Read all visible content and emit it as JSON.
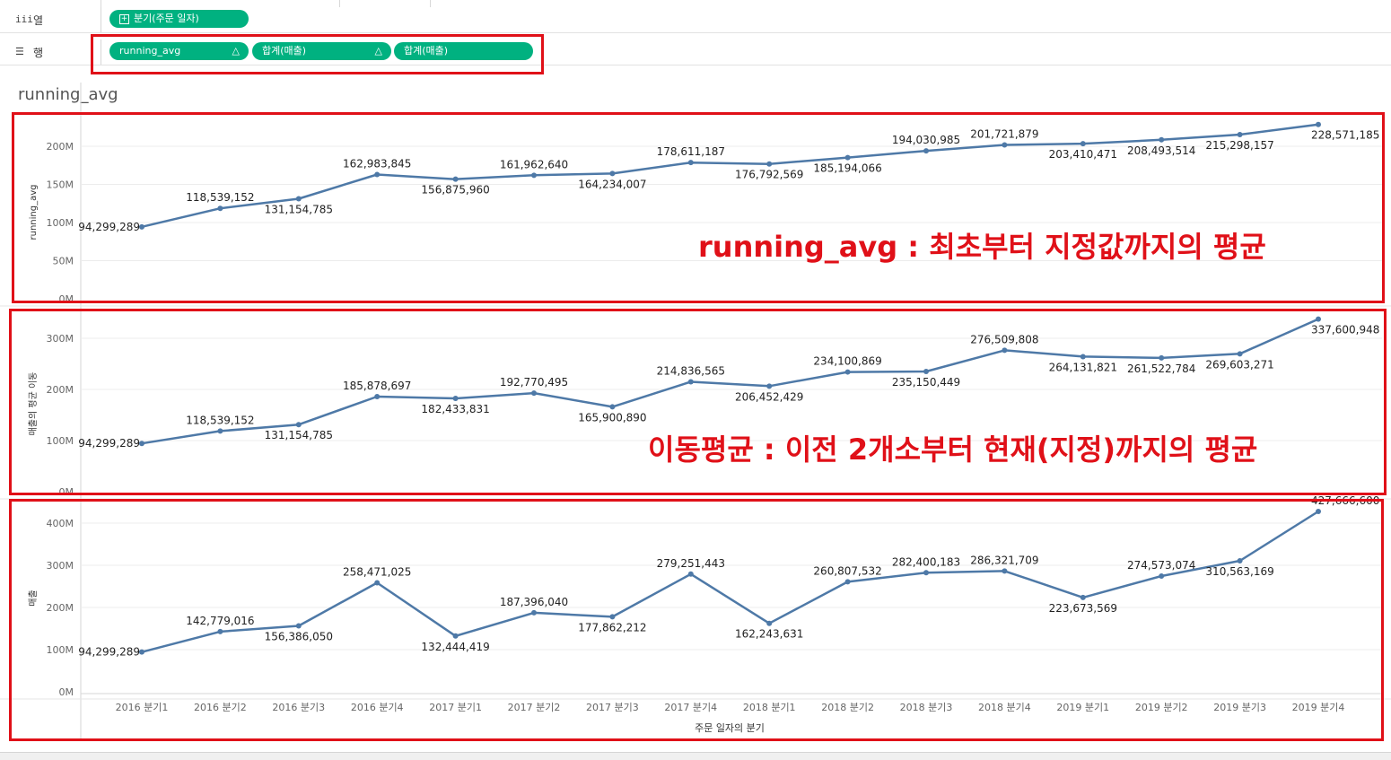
{
  "shelves": {
    "columns": {
      "label": "열",
      "icon": "column-bars-icon",
      "pills": [
        {
          "label": "분기(주문 일자)",
          "delta": false,
          "expand": true
        }
      ]
    },
    "rows": {
      "label": "행",
      "icon": "list-lines-icon",
      "pills": [
        {
          "label": "running_avg",
          "delta": true
        },
        {
          "label": "합계(매출)",
          "delta": true
        },
        {
          "label": "합계(매출)",
          "delta": false
        }
      ]
    }
  },
  "sheet": {
    "title": "running_avg"
  },
  "annotations": {
    "panel1": "running_avg : 최초부터 지정값까지의 평균",
    "panel2": "이동평균 : 이전 2개소부터 현재(지정)까지의 평균"
  },
  "colors": {
    "line": "#4e79a7",
    "pill": "#00b180",
    "highlight": "#e01018",
    "grid": "#ececec",
    "tick": "#666666"
  },
  "chart_data": [
    {
      "type": "line",
      "ylabel": "running_avg",
      "xlabel": "주문 일자의 분기",
      "categories": [
        "2016 분기1",
        "2016 분기2",
        "2016 분기3",
        "2016 분기4",
        "2017 분기1",
        "2017 분기2",
        "2017 분기3",
        "2017 분기4",
        "2018 분기1",
        "2018 분기2",
        "2018 분기3",
        "2018 분기4",
        "2019 분기1",
        "2019 분기2",
        "2019 분기3",
        "2019 분기4"
      ],
      "values": [
        94299289,
        118539152,
        131154785,
        162983845,
        156875960,
        161962640,
        164234007,
        178611187,
        176792569,
        185194066,
        194030985,
        201721879,
        203410471,
        208493514,
        215298157,
        228571185
      ],
      "data_labels": [
        "94,299,289",
        "118,539,152",
        "131,154,785",
        "162,983,845",
        "156,875,960",
        "161,962,640",
        "164,234,007",
        "178,611,187",
        "176,792,569",
        "185,194,066",
        "194,030,985",
        "201,721,879",
        "203,410,471",
        "208,493,514",
        "215,298,157",
        "228,571,185"
      ],
      "yticks": [
        0,
        50000000,
        100000000,
        150000000,
        200000000
      ],
      "ytick_labels": [
        "0M",
        "50M",
        "100M",
        "150M",
        "200M"
      ],
      "ylim": [
        0,
        235000000
      ]
    },
    {
      "type": "line",
      "ylabel": "매출의 평균 이동",
      "xlabel": "주문 일자의 분기",
      "categories": [
        "2016 분기1",
        "2016 분기2",
        "2016 분기3",
        "2016 분기4",
        "2017 분기1",
        "2017 분기2",
        "2017 분기3",
        "2017 분기4",
        "2018 분기1",
        "2018 분기2",
        "2018 분기3",
        "2018 분기4",
        "2019 분기1",
        "2019 분기2",
        "2019 분기3",
        "2019 분기4"
      ],
      "values": [
        94299289,
        118539152,
        131154785,
        185878697,
        182433831,
        192770495,
        165900890,
        214836565,
        206452429,
        234100869,
        235150449,
        276509808,
        264131821,
        261522784,
        269603271,
        337600948
      ],
      "data_labels": [
        "94,299,289",
        "118,539,152",
        "131,154,785",
        "185,878,697",
        "182,433,831",
        "192,770,495",
        "165,900,890",
        "214,836,565",
        "206,452,429",
        "234,100,869",
        "235,150,449",
        "276,509,808",
        "264,131,821",
        "261,522,784",
        "269,603,271",
        "337,600,948"
      ],
      "yticks": [
        0,
        100000000,
        200000000,
        300000000
      ],
      "ytick_labels": [
        "0M",
        "100M",
        "200M",
        "300M"
      ],
      "ylim": [
        0,
        345000000
      ]
    },
    {
      "type": "line",
      "ylabel": "매출",
      "xlabel": "주문 일자의 분기",
      "categories": [
        "2016 분기1",
        "2016 분기2",
        "2016 분기3",
        "2016 분기4",
        "2017 분기1",
        "2017 분기2",
        "2017 분기3",
        "2017 분기4",
        "2018 분기1",
        "2018 분기2",
        "2018 분기3",
        "2018 분기4",
        "2019 분기1",
        "2019 분기2",
        "2019 분기3",
        "2019 분기4"
      ],
      "values": [
        94299289,
        142779016,
        156386050,
        258471025,
        132444419,
        187396040,
        177862212,
        279251443,
        162243631,
        260807532,
        282400183,
        286321709,
        223673569,
        274573074,
        310563169,
        427666600
      ],
      "data_labels": [
        "94,299,289",
        "142,779,016",
        "156,386,050",
        "258,471,025",
        "132,444,419",
        "187,396,040",
        "177,862,212",
        "279,251,443",
        "162,243,631",
        "260,807,532",
        "282,400,183",
        "286,321,709",
        "223,673,569",
        "274,573,074",
        "310,563,169",
        "427,666,600"
      ],
      "yticks": [
        0,
        100000000,
        200000000,
        300000000,
        400000000
      ],
      "ytick_labels": [
        "0M",
        "100M",
        "200M",
        "300M",
        "400M"
      ],
      "ylim": [
        0,
        430000000
      ]
    }
  ]
}
